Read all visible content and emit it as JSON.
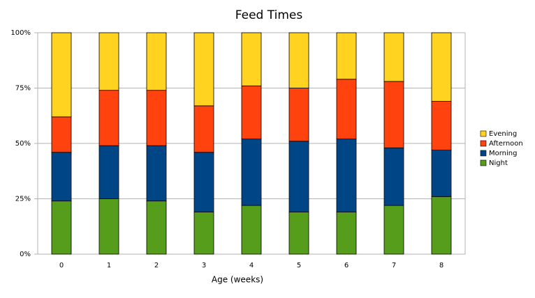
{
  "chart_data": {
    "type": "stacked-bar",
    "title": "Feed Times",
    "x_label": "Age (weeks)",
    "categories": [
      "0",
      "1",
      "2",
      "3",
      "4",
      "5",
      "6",
      "7",
      "8"
    ],
    "series": [
      {
        "name": "Night",
        "color": "#579d1c",
        "values": [
          24,
          25,
          24,
          19,
          22,
          19,
          19,
          22,
          26
        ]
      },
      {
        "name": "Morning",
        "color": "#004586",
        "values": [
          22,
          24,
          25,
          27,
          30,
          32,
          33,
          26,
          21
        ]
      },
      {
        "name": "Afternoon",
        "color": "#ff420e",
        "values": [
          16,
          25,
          25,
          21,
          24,
          24,
          27,
          30,
          22
        ]
      },
      {
        "name": "Evening",
        "color": "#ffd320",
        "values": [
          38,
          26,
          26,
          33,
          24,
          25,
          21,
          22,
          31
        ]
      }
    ],
    "ylim": [
      0,
      100
    ],
    "yticks": [
      {
        "value": 0,
        "label": "0%"
      },
      {
        "value": 25,
        "label": "25%"
      },
      {
        "value": 50,
        "label": "50%"
      },
      {
        "value": 75,
        "label": "75%"
      },
      {
        "value": 100,
        "label": "100%"
      }
    ],
    "grid": true,
    "legend": "right"
  }
}
